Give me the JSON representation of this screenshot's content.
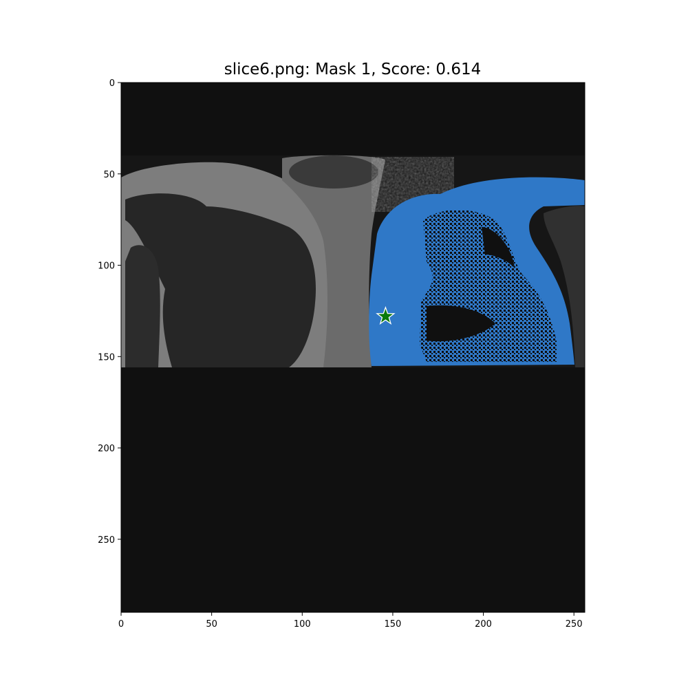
{
  "title": "slice6.png: Mask 1, Score: 0.614",
  "colors": {
    "background": "#101010",
    "mask": "#2f78c7",
    "star_fill": "#0a7a0a",
    "star_stroke": "#ffffff"
  },
  "chart_data": {
    "type": "image",
    "title": "slice6.png: Mask 1, Score: 0.614",
    "xlim": [
      0,
      256
    ],
    "ylim": [
      290,
      0
    ],
    "x_ticks": [
      {
        "value": 0,
        "label": "0"
      },
      {
        "value": 50,
        "label": "50"
      },
      {
        "value": 100,
        "label": "100"
      },
      {
        "value": 150,
        "label": "150"
      },
      {
        "value": 200,
        "label": "200"
      },
      {
        "value": 250,
        "label": "250"
      }
    ],
    "y_ticks": [
      {
        "value": 0,
        "label": "0"
      },
      {
        "value": 50,
        "label": "50"
      },
      {
        "value": 100,
        "label": "100"
      },
      {
        "value": 150,
        "label": "150"
      },
      {
        "value": 200,
        "label": "200"
      },
      {
        "value": 250,
        "label": "250"
      }
    ],
    "point": {
      "x": 146,
      "y": 128,
      "marker": "star"
    },
    "mask_label": "Mask 1",
    "score": 0.614
  }
}
